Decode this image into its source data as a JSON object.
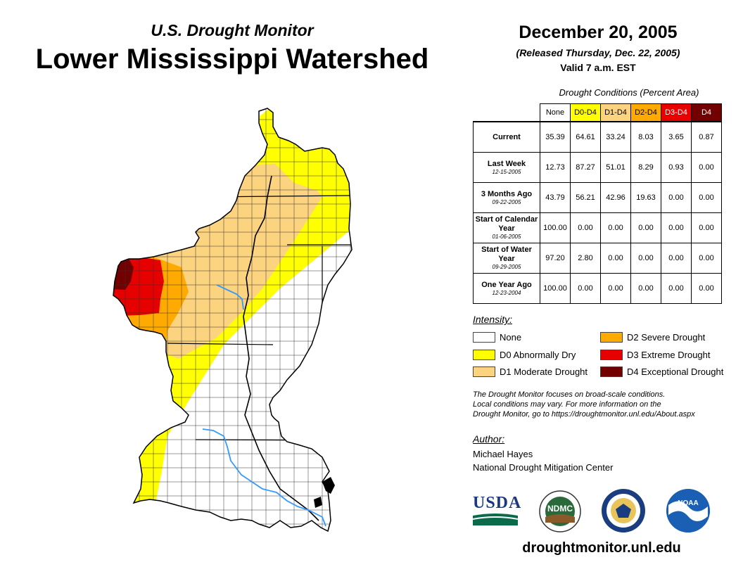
{
  "header": {
    "subtitle": "U.S. Drought Monitor",
    "title": "Lower Mississippi Watershed",
    "date": "December 20, 2005",
    "released": "(Released Thursday, Dec. 22, 2005)",
    "valid": "Valid 7 a.m. EST"
  },
  "table": {
    "caption": "Drought Conditions (Percent Area)",
    "columns": [
      "None",
      "D0-D4",
      "D1-D4",
      "D2-D4",
      "D3-D4",
      "D4"
    ],
    "column_colors": [
      "#ffffff",
      "#ffff00",
      "#fcd37f",
      "#ffaa00",
      "#e60000",
      "#730000"
    ],
    "rows": [
      {
        "label": "Current",
        "sublabel": "",
        "values": [
          "35.39",
          "64.61",
          "33.24",
          "8.03",
          "3.65",
          "0.87"
        ]
      },
      {
        "label": "Last Week",
        "sublabel": "12-15-2005",
        "values": [
          "12.73",
          "87.27",
          "51.01",
          "8.29",
          "0.93",
          "0.00"
        ]
      },
      {
        "label": "3 Months Ago",
        "sublabel": "09-22-2005",
        "values": [
          "43.79",
          "56.21",
          "42.96",
          "19.63",
          "0.00",
          "0.00"
        ]
      },
      {
        "label": "Start of Calendar Year",
        "sublabel": "01-06-2005",
        "values": [
          "100.00",
          "0.00",
          "0.00",
          "0.00",
          "0.00",
          "0.00"
        ]
      },
      {
        "label": "Start of Water Year",
        "sublabel": "09-29-2005",
        "values": [
          "97.20",
          "2.80",
          "0.00",
          "0.00",
          "0.00",
          "0.00"
        ]
      },
      {
        "label": "One Year Ago",
        "sublabel": "12-23-2004",
        "values": [
          "100.00",
          "0.00",
          "0.00",
          "0.00",
          "0.00",
          "0.00"
        ]
      }
    ]
  },
  "legend": {
    "title": "Intensity:",
    "items": [
      {
        "label": "None",
        "color": "#ffffff"
      },
      {
        "label": "D0 Abnormally Dry",
        "color": "#ffff00"
      },
      {
        "label": "D1 Moderate Drought",
        "color": "#fcd37f"
      },
      {
        "label": "D2 Severe Drought",
        "color": "#ffaa00"
      },
      {
        "label": "D3 Extreme Drought",
        "color": "#e60000"
      },
      {
        "label": "D4 Exceptional Drought",
        "color": "#730000"
      }
    ]
  },
  "note": {
    "line1": "The Drought Monitor focuses on broad-scale conditions.",
    "line2": "Local conditions may vary. For more information on the",
    "line3": "Drought Monitor, go to https://droughtmonitor.unl.edu/About.aspx"
  },
  "author": {
    "title": "Author:",
    "name": "Michael Hayes",
    "org": "National Drought Mitigation Center"
  },
  "logos": {
    "usda": "USDA",
    "ndmc": "NDMC",
    "noaa": "NOAA"
  },
  "footer": {
    "url": "droughtmonitor.unl.edu"
  },
  "map": {
    "river_color": "#3399ff"
  }
}
